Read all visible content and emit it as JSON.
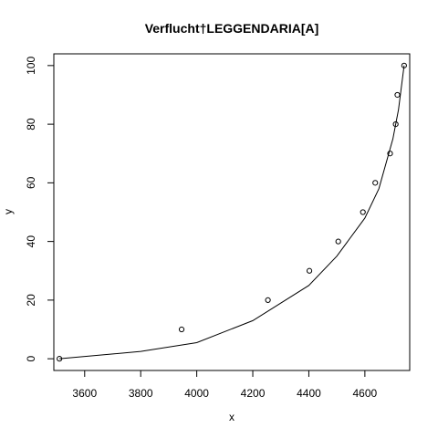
{
  "chart_data": {
    "type": "scatter",
    "title": "Verflucht†LEGGENDARIA[A]",
    "xlabel": "x",
    "ylabel": "y",
    "xlim": [
      3490,
      4760
    ],
    "ylim": [
      -4,
      104
    ],
    "xticks": [
      3600,
      3800,
      4000,
      4200,
      4400,
      4600
    ],
    "yticks": [
      0,
      20,
      40,
      60,
      80,
      100
    ],
    "grid": false,
    "legend": "none",
    "series": [
      {
        "kind": "points",
        "x": [
          3510,
          3946,
          4254,
          4402,
          4505,
          4593,
          4637,
          4690,
          4710,
          4716,
          4740
        ],
        "y": [
          0,
          10,
          20,
          30,
          40,
          50,
          60,
          70,
          80,
          90,
          100
        ]
      },
      {
        "kind": "fitted-curve",
        "x": [
          3510,
          3800,
          4000,
          4200,
          4400,
          4500,
          4600,
          4650,
          4700,
          4720,
          4740
        ],
        "y": [
          0,
          2.5,
          5.5,
          13,
          25,
          35,
          48,
          58,
          75,
          85,
          100
        ]
      }
    ],
    "colors": {
      "points": "#000000",
      "curve": "#000000",
      "frame": "#000000"
    }
  }
}
